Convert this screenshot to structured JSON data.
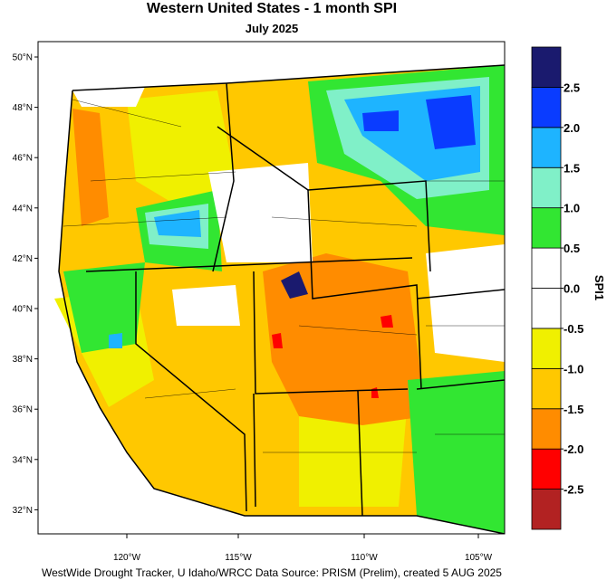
{
  "title": "Western United States - 1 month SPI",
  "subtitle": "July 2025",
  "map": {
    "lat_labels": [
      "50°N",
      "48°N",
      "46°N",
      "44°N",
      "42°N",
      "40°N",
      "38°N",
      "36°N",
      "34°N",
      "32°N"
    ],
    "lon_labels": [
      "120°W",
      "115°W",
      "110°W",
      "105°W"
    ]
  },
  "colorbar": {
    "title": "SPI1",
    "lim": [
      -3,
      3
    ],
    "colors": [
      "#b22222",
      "#ff0000",
      "#ff8c00",
      "#ffc800",
      "#f0f000",
      "#ffffff",
      "#ffffff",
      "#32e632",
      "#80f0c8",
      "#1eb4ff",
      "#0a3cff",
      "#1a1a6e"
    ],
    "ticks": [
      {
        "value": 2.5,
        "label": "2.5"
      },
      {
        "value": 2,
        "label": "2.0"
      },
      {
        "value": 1.5,
        "label": "1.5"
      },
      {
        "value": 1,
        "label": "1.0"
      },
      {
        "value": 0.5,
        "label": "0.5"
      },
      {
        "value": 0,
        "label": "0.0"
      },
      {
        "value": -0.5,
        "label": "-0.5"
      },
      {
        "value": -1,
        "label": "-1.0"
      },
      {
        "value": -1.5,
        "label": "-1.5"
      },
      {
        "value": -2,
        "label": "-2.0"
      },
      {
        "value": -2.5,
        "label": "-2.5"
      }
    ]
  },
  "credit": "WestWide Drought Tracker, U Idaho/WRCC Data Source: PRISM (Prelim), created  5 AUG 2025"
}
